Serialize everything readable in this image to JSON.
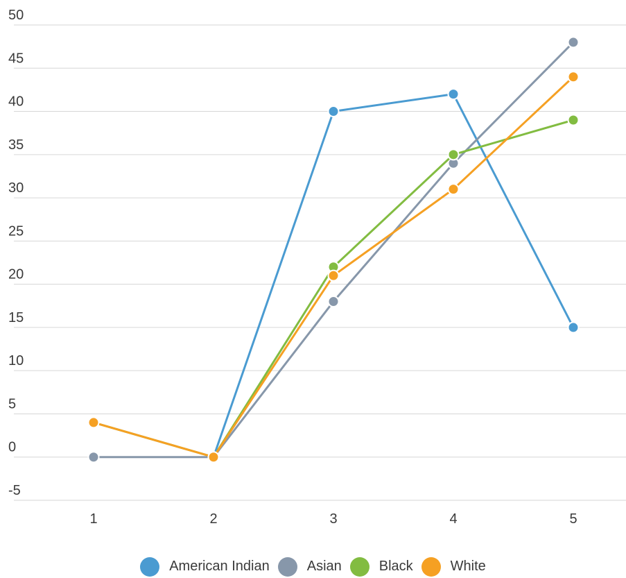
{
  "chart_data": {
    "type": "line",
    "title": "",
    "xlabel": "",
    "ylabel": "",
    "categories": [
      "1",
      "2",
      "3",
      "4",
      "5"
    ],
    "ylim": [
      -5,
      50
    ],
    "yticks": [
      -5,
      0,
      5,
      10,
      15,
      20,
      25,
      30,
      35,
      40,
      45,
      50
    ],
    "grid": "horizontal",
    "legend_position": "bottom",
    "series": [
      {
        "name": "American Indian",
        "color": "#4a9bd1",
        "values": [
          null,
          0,
          40,
          42,
          15
        ]
      },
      {
        "name": "Asian",
        "color": "#8797aa",
        "values": [
          0,
          0,
          18,
          34,
          48
        ]
      },
      {
        "name": "Black",
        "color": "#82bc41",
        "values": [
          4,
          0,
          22,
          35,
          39
        ]
      },
      {
        "name": "White",
        "color": "#f5a023",
        "values": [
          4,
          0,
          21,
          31,
          44
        ]
      }
    ]
  }
}
